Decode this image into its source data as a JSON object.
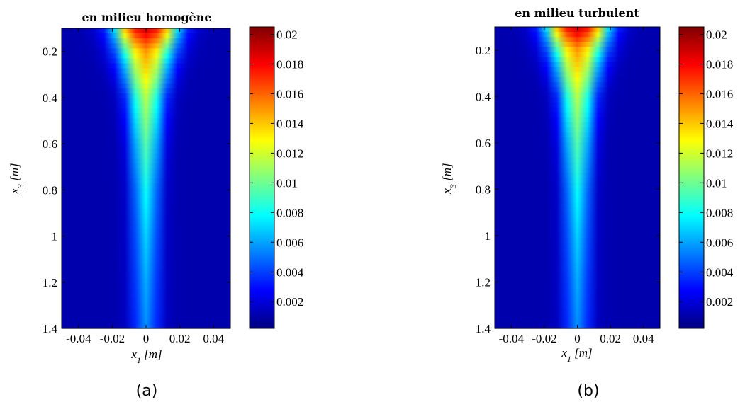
{
  "chart_data": [
    {
      "type": "heatmap",
      "title": "en milieu homogène",
      "caption": "(a)",
      "xlabel": {
        "symbol": "x",
        "sub": "1",
        "unit": " [m]"
      },
      "ylabel": {
        "symbol": "x",
        "sub": "3",
        "unit": " [m]"
      },
      "xlim": [
        -0.05,
        0.05
      ],
      "ylim": [
        0.1,
        1.4
      ],
      "y_reversed": true,
      "xticks": [
        -0.04,
        -0.02,
        0,
        0.02,
        0.04
      ],
      "xtick_labels": [
        "-0.04",
        "-0.02",
        "0",
        "0.02",
        "0.04"
      ],
      "yticks": [
        0.2,
        0.4,
        0.6,
        0.8,
        1,
        1.2,
        1.4
      ],
      "ytick_labels": [
        "0.2",
        "0.4",
        "0.6",
        "0.8",
        "1",
        "1.2",
        "1.4"
      ],
      "colormap": "jet",
      "clim": [
        0.0002,
        0.0205
      ],
      "colorbar_ticks": [
        0.002,
        0.004,
        0.006,
        0.008,
        0.01,
        0.012,
        0.014,
        0.016,
        0.018,
        0.02
      ],
      "colorbar_tick_labels": [
        "0.002",
        "0.004",
        "0.006",
        "0.008",
        "0.01",
        "0.012",
        "0.014",
        "0.016",
        "0.018",
        "0.02"
      ],
      "field_profile": {
        "x3": [
          0.1,
          0.2,
          0.4,
          0.6,
          0.8,
          1.0,
          1.2,
          1.4
        ],
        "center_value": [
          0.019,
          0.015,
          0.0115,
          0.0095,
          0.008,
          0.007,
          0.0062,
          0.0056
        ],
        "half_width": [
          0.022,
          0.019,
          0.013,
          0.011,
          0.01,
          0.01,
          0.01,
          0.01
        ]
      }
    },
    {
      "type": "heatmap",
      "title": "en milieu turbulent",
      "caption": "(b)",
      "xlabel": {
        "symbol": "x",
        "sub": "1",
        "unit": " [m]"
      },
      "ylabel": {
        "symbol": "x",
        "sub": "3",
        "unit": " [m]"
      },
      "xlim": [
        -0.05,
        0.05
      ],
      "ylim": [
        0.1,
        1.4
      ],
      "y_reversed": true,
      "xticks": [
        -0.04,
        -0.02,
        0,
        0.02,
        0.04
      ],
      "xtick_labels": [
        "-0.04",
        "-0.02",
        "0",
        "0.02",
        "0.04"
      ],
      "yticks": [
        0.2,
        0.4,
        0.6,
        0.8,
        1,
        1.2,
        1.4
      ],
      "ytick_labels": [
        "0.2",
        "0.4",
        "0.6",
        "0.8",
        "1",
        "1.2",
        "1.4"
      ],
      "colormap": "jet",
      "clim": [
        0.0002,
        0.0205
      ],
      "colorbar_ticks": [
        0.002,
        0.004,
        0.006,
        0.008,
        0.01,
        0.012,
        0.014,
        0.016,
        0.018,
        0.02
      ],
      "colorbar_tick_labels": [
        "0.002",
        "0.004",
        "0.006",
        "0.008",
        "0.01",
        "0.012",
        "0.014",
        "0.016",
        "0.018",
        "0.02"
      ],
      "field_profile": {
        "x3": [
          0.1,
          0.2,
          0.4,
          0.6,
          0.8,
          1.0,
          1.2,
          1.4
        ],
        "center_value": [
          0.019,
          0.015,
          0.0115,
          0.0095,
          0.008,
          0.007,
          0.0062,
          0.0056
        ],
        "half_width": [
          0.022,
          0.019,
          0.013,
          0.011,
          0.01,
          0.01,
          0.01,
          0.01
        ]
      }
    }
  ]
}
